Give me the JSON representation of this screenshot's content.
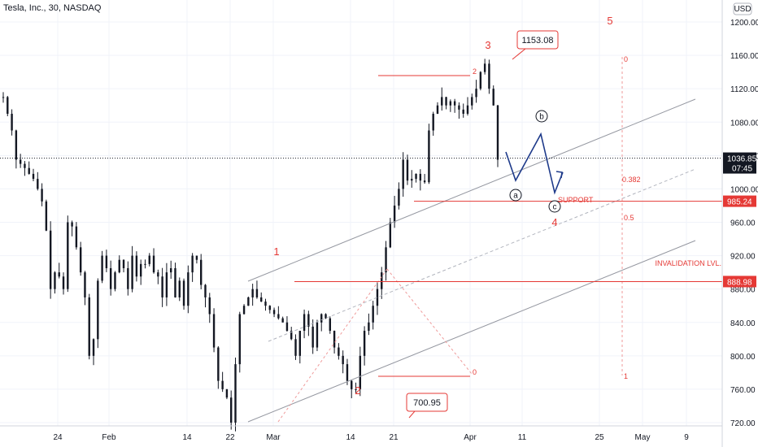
{
  "header": {
    "title": "Tesla, Inc., 30, NASDAQ",
    "currency": "USD"
  },
  "axis": {
    "price_min": 700,
    "price_max": 1220,
    "price_ticks": [
      "1200.00",
      "1160.00",
      "1120.00",
      "1080.00",
      "1040.00",
      "1000.00",
      "960.00",
      "920.00",
      "880.00",
      "840.00",
      "800.00",
      "760.00",
      "720.00"
    ],
    "time_ticks": [
      "24",
      "Feb",
      "14",
      "22",
      "Mar",
      "14",
      "21",
      "Apr",
      "11",
      "25",
      "May",
      "9"
    ]
  },
  "chart_data": {
    "type": "line",
    "title": "Tesla, Inc., 30, NASDAQ",
    "ylim": [
      700,
      1220
    ],
    "x_labels": [
      "24",
      "Feb",
      "14",
      "22",
      "Mar",
      "14",
      "21",
      "Apr",
      "11",
      "25",
      "May",
      "9"
    ],
    "series": [
      {
        "values": [
          1110,
          1090,
          1070,
          1035,
          1030,
          1025,
          1018,
          1012,
          1000,
          985,
          950,
          880,
          900,
          895,
          880,
          960,
          955,
          930,
          900,
          870,
          800,
          820,
          890,
          920,
          905,
          880,
          900,
          915,
          905,
          880,
          920,
          895,
          910,
          910,
          920,
          900,
          895,
          870,
          900,
          905,
          870,
          890,
          860,
          900,
          920,
          915,
          885,
          870,
          850,
          810,
          770,
          760,
          750,
          720,
          790,
          850,
          860,
          870,
          880,
          870,
          865,
          860,
          855,
          850,
          845,
          840,
          830,
          820,
          800,
          830,
          850,
          835,
          810,
          840,
          850,
          845,
          830,
          810,
          800,
          790,
          770,
          760,
          760,
          800,
          830,
          840,
          860,
          880,
          900,
          930,
          960,
          980,
          1000,
          1035,
          1010,
          1012,
          1018,
          1010,
          1008,
          1070,
          1090,
          1100,
          1110,
          1100,
          1105,
          1100,
          1095,
          1090,
          1100,
          1110,
          1120,
          1140,
          1150,
          1120,
          1100,
          1035
        ]
      }
    ],
    "annotations": {
      "price_labels": [
        {
          "text": "1153.08"
        },
        {
          "text": "700.95"
        }
      ],
      "axis_badges": [
        {
          "text": "1036.85",
          "sub": "07:45",
          "price": 1036.85,
          "color": "#131722"
        },
        {
          "text": "985.24",
          "price": 985.24,
          "color": "#e53935"
        },
        {
          "text": "888.98",
          "price": 888.98,
          "color": "#e53935"
        }
      ],
      "waves": [
        "1",
        "2",
        "3",
        "4",
        "5"
      ],
      "sub_waves": [
        "a",
        "b",
        "c"
      ],
      "text_labels": {
        "support": "SUPPORT",
        "invalidation": "INVALIDATION LVL."
      },
      "fib_levels": [
        {
          "text": "0"
        },
        {
          "text": "0.382"
        },
        {
          "text": "0.5"
        },
        {
          "text": "1"
        }
      ],
      "small_labels": [
        {
          "text": "2"
        },
        {
          "text": "0"
        }
      ]
    }
  }
}
